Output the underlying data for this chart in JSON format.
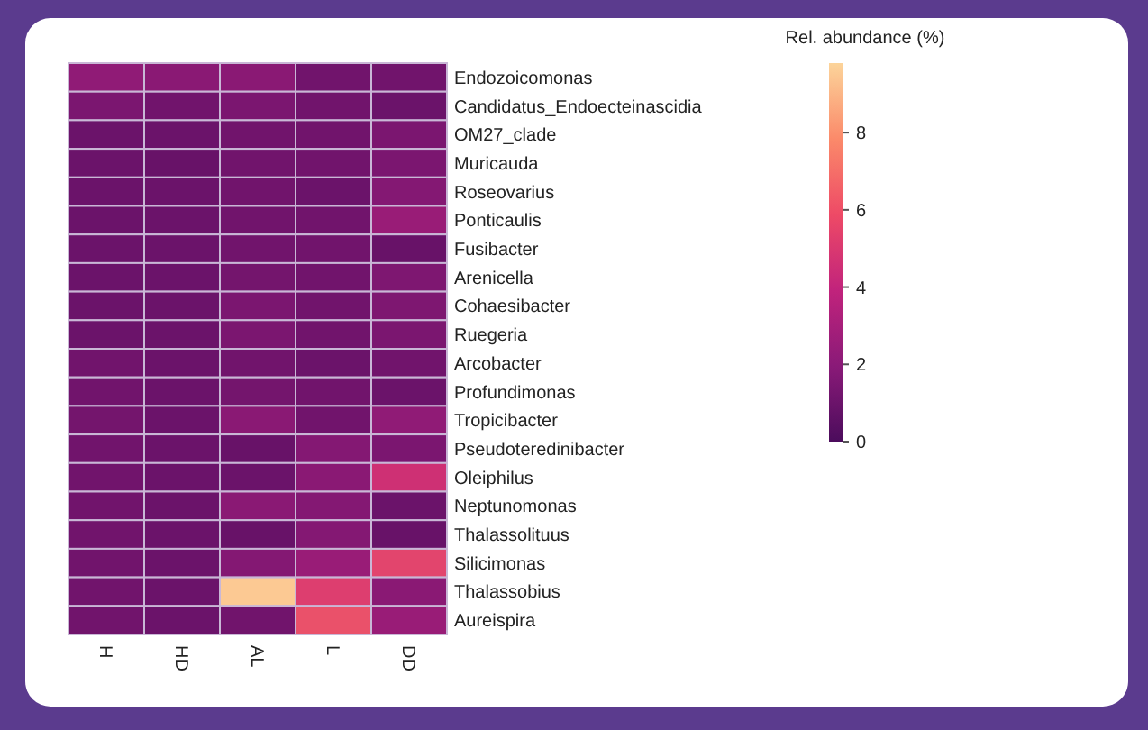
{
  "chart_data": {
    "type": "heatmap",
    "clabel": "Rel. abundance (%)",
    "categories": [
      "H",
      "HD",
      "AL",
      "L",
      "DD"
    ],
    "y_categories": [
      "Endozoicomonas",
      "Candidatus_Endoecteinascidia",
      "OM27_clade",
      "Muricauda",
      "Roseovarius",
      "Ponticaulis",
      "Fusibacter",
      "Arenicella",
      "Cohaesibacter",
      "Ruegeria",
      "Arcobacter",
      "Profundimonas",
      "Tropicibacter",
      "Pseudoteredinibacter",
      "Oleiphilus",
      "Neptunomonas",
      "Thalassolituus",
      "Silicimonas",
      "Thalassobius",
      "Aureispira"
    ],
    "cells": [
      [
        2.2,
        2.0,
        2.0,
        1.2,
        1.2
      ],
      [
        1.5,
        1.2,
        1.5,
        1.2,
        1.0
      ],
      [
        1.0,
        1.0,
        1.2,
        1.2,
        1.5
      ],
      [
        1.0,
        0.9,
        1.2,
        1.2,
        1.5
      ],
      [
        1.0,
        1.0,
        1.2,
        1.0,
        1.8
      ],
      [
        1.0,
        1.0,
        1.2,
        1.2,
        2.5
      ],
      [
        1.0,
        1.0,
        1.2,
        1.2,
        0.9
      ],
      [
        1.0,
        1.0,
        1.3,
        1.2,
        1.6
      ],
      [
        1.0,
        1.0,
        1.5,
        1.2,
        1.6
      ],
      [
        1.0,
        1.0,
        1.5,
        1.2,
        1.5
      ],
      [
        1.2,
        1.0,
        1.2,
        1.0,
        1.2
      ],
      [
        1.2,
        1.0,
        1.3,
        1.2,
        1.0
      ],
      [
        1.3,
        1.0,
        2.0,
        1.2,
        2.2
      ],
      [
        1.2,
        1.0,
        0.9,
        1.8,
        1.5
      ],
      [
        1.2,
        1.0,
        1.0,
        2.0,
        4.5
      ],
      [
        1.2,
        1.0,
        2.0,
        1.8,
        1.0
      ],
      [
        1.2,
        1.0,
        0.9,
        1.8,
        0.9
      ],
      [
        1.2,
        1.0,
        1.8,
        2.5,
        5.5
      ],
      [
        1.2,
        1.0,
        9.5,
        5.2,
        2.0
      ],
      [
        1.2,
        1.0,
        1.2,
        6.0,
        2.5
      ]
    ],
    "clim": [
      0,
      9.8
    ],
    "cticks": [
      0,
      2,
      4,
      6,
      8
    ]
  }
}
